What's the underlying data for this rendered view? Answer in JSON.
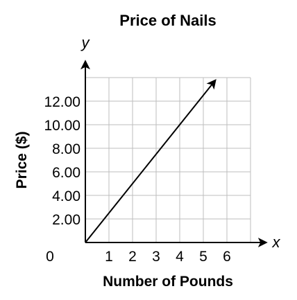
{
  "chart_data": {
    "type": "line",
    "title": "Price of Nails",
    "xlabel": "Number of Pounds",
    "ylabel": "Price ($)",
    "x_axis_var": "x",
    "y_axis_var": "y",
    "origin_label": "0",
    "x_ticks": [
      "1",
      "2",
      "3",
      "4",
      "5",
      "6"
    ],
    "y_ticks": [
      "2.00",
      "4.00",
      "6.00",
      "8.00",
      "10.00",
      "12.00"
    ],
    "xlim": [
      0,
      7
    ],
    "ylim": [
      0,
      14
    ],
    "grid": true,
    "series": [
      {
        "x": [
          0,
          5.5
        ],
        "y": [
          0,
          13.75
        ],
        "arrow_end": true
      }
    ],
    "line_color": "#000000",
    "grid_color": "#bdbdbd"
  }
}
